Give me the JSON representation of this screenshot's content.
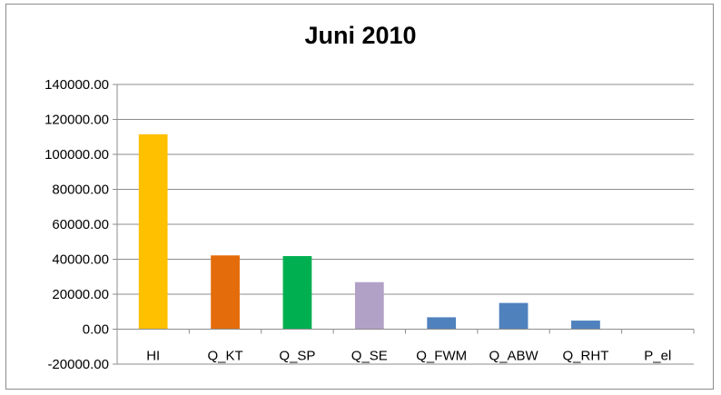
{
  "chart_data": {
    "type": "bar",
    "title": "Juni 2010",
    "xlabel": "",
    "ylabel": "",
    "categories": [
      "HI",
      "Q_KT",
      "Q_SP",
      "Q_SE",
      "Q_FWM",
      "Q_ABW",
      "Q_RHT",
      "P_el"
    ],
    "values": [
      111500,
      42200,
      41800,
      26900,
      6800,
      15000,
      4900,
      0
    ],
    "colors": [
      "#FFC000",
      "#E46C0A",
      "#00B050",
      "#B2A1C7",
      "#4F81BD",
      "#4F81BD",
      "#4F81BD",
      "#4F81BD"
    ],
    "ylim": [
      -20000,
      140000
    ],
    "yticks": [
      -20000,
      0,
      20000,
      40000,
      60000,
      80000,
      100000,
      120000,
      140000
    ],
    "ytick_labels": [
      "-20000.00",
      "0.00",
      "20000.00",
      "40000.00",
      "60000.00",
      "80000.00",
      "100000.00",
      "120000.00",
      "140000.00"
    ],
    "grid": true,
    "legend": "none"
  }
}
